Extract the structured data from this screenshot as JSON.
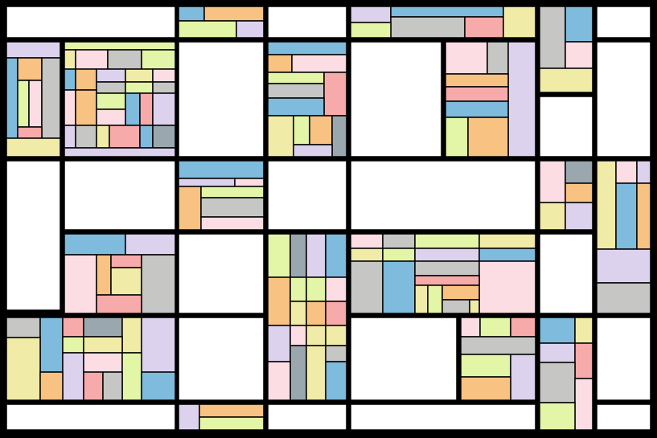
{
  "palette": {
    "line": "#000000",
    "white": "#ffffff",
    "yellow": "#f1eba8",
    "orange": "#f8c283",
    "blue": "#7ebbdd",
    "pink": "#fcdde4",
    "lavender": "#ddd2ee",
    "gray": "#c6c6c4",
    "green": "#e3f5a6",
    "salmon": "#f7aaaa",
    "slate": "#9aa7ae"
  }
}
